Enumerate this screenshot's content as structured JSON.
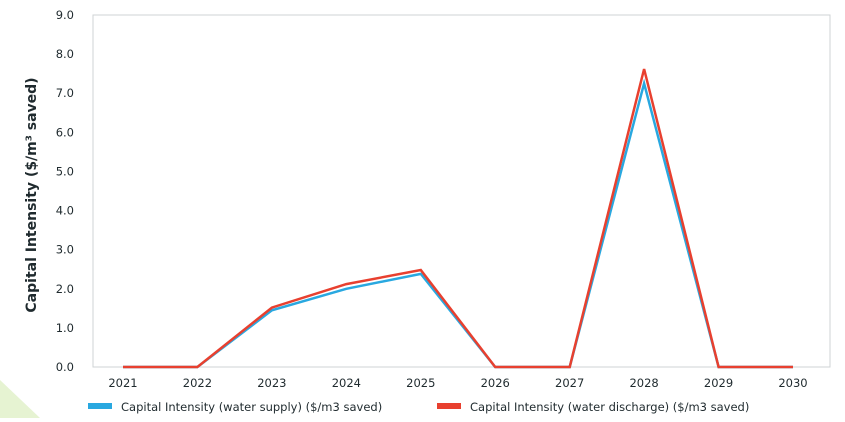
{
  "chart_data": {
    "type": "line",
    "categories": [
      "2021",
      "2022",
      "2023",
      "2024",
      "2025",
      "2026",
      "2027",
      "2028",
      "2029",
      "2030"
    ],
    "series": [
      {
        "name": "Capital Intensity (water supply) ($/m3 saved)",
        "color": "#29a8e0",
        "values": [
          0,
          0,
          1.45,
          2.0,
          2.38,
          0,
          0,
          7.25,
          0,
          0
        ]
      },
      {
        "name": "Capital Intensity (water discharge) ($/m3 saved)",
        "color": "#e8402f",
        "values": [
          0,
          0,
          1.52,
          2.12,
          2.48,
          0,
          0,
          7.62,
          0,
          0
        ]
      }
    ],
    "yticks": [
      "0.0",
      "1.0",
      "2.0",
      "3.0",
      "4.0",
      "5.0",
      "6.0",
      "7.0",
      "8.0",
      "9.0"
    ],
    "ylim": [
      0,
      9
    ],
    "ylabel": "Capital Intensity ($/m³ saved)",
    "xlabel": "",
    "title": "",
    "grid": false,
    "legend_position": "bottom"
  }
}
